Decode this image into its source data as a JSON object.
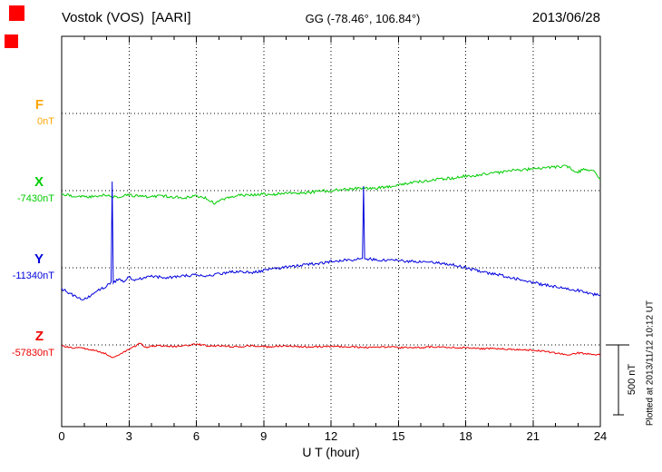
{
  "header": {
    "station": "Vostok (VOS)  [AARI]",
    "coords": "GG (-78.46°, 106.84°)",
    "date": "2013/06/28"
  },
  "decorations": {
    "marker_color": "#ff0000"
  },
  "components": [
    {
      "id": "F",
      "label": "F",
      "baseline_label": "0nT",
      "baseline_nT": 0,
      "color": "#ffa500"
    },
    {
      "id": "X",
      "label": "X",
      "baseline_label": "-7430nT",
      "baseline_nT": -7430,
      "color": "#00cc00"
    },
    {
      "id": "Y",
      "label": "Y",
      "baseline_label": "-11340nT",
      "baseline_nT": -11340,
      "color": "#0000dd"
    },
    {
      "id": "Z",
      "label": "Z",
      "baseline_label": "-57830nT",
      "baseline_nT": -57830,
      "color": "#ee0000"
    }
  ],
  "xaxis": {
    "label": "U T (hour)",
    "min": 0,
    "max": 24,
    "minor_step": 1,
    "ticks": [
      0,
      3,
      6,
      9,
      12,
      15,
      18,
      21,
      24
    ]
  },
  "scalebar": {
    "label": "500 nT",
    "nT": 500
  },
  "footer_note": "Plotted at 2013/11/12 10:12 UT",
  "chart_data": {
    "type": "line",
    "title": "Vostok (VOS) [AARI] magnetogram 2013/06/28",
    "xlabel": "U T (hour)",
    "x_range": [
      0,
      24
    ],
    "unit": "nT",
    "grid": "dotted, vertical every 3 h, horizontal at each component baseline",
    "legend_position": "left margin (component letters with baseline values)",
    "note": "points are [hour UT, offset in nT from the component baseline value]; F has no data plotted",
    "series": [
      {
        "name": "F",
        "baseline_nT": 0,
        "color": "#ffa500",
        "noise_nT": 0,
        "points": []
      },
      {
        "name": "X",
        "baseline_nT": -7430,
        "color": "#00cc00",
        "noise_nT": 10,
        "points": [
          [
            0,
            -26
          ],
          [
            0.5,
            -39
          ],
          [
            1,
            -45
          ],
          [
            1.5,
            -39
          ],
          [
            2,
            -32
          ],
          [
            2.5,
            -45
          ],
          [
            3,
            -32
          ],
          [
            3.5,
            -39
          ],
          [
            4,
            -45
          ],
          [
            4.5,
            -39
          ],
          [
            5,
            -45
          ],
          [
            5.5,
            -52
          ],
          [
            6,
            -39
          ],
          [
            6.5,
            -58
          ],
          [
            6.8,
            -91
          ],
          [
            7,
            -71
          ],
          [
            7.5,
            -45
          ],
          [
            8,
            -32
          ],
          [
            8.5,
            -32
          ],
          [
            9,
            -26
          ],
          [
            9.5,
            -26
          ],
          [
            10,
            -19
          ],
          [
            10.5,
            -19
          ],
          [
            11,
            -13
          ],
          [
            11.5,
            -6
          ],
          [
            12,
            0
          ],
          [
            12.5,
            6
          ],
          [
            13,
            13
          ],
          [
            13.5,
            19
          ],
          [
            14,
            19
          ],
          [
            14.5,
            26
          ],
          [
            15,
            39
          ],
          [
            15.5,
            52
          ],
          [
            16,
            65
          ],
          [
            16.5,
            78
          ],
          [
            17,
            84
          ],
          [
            17.5,
            91
          ],
          [
            18,
            104
          ],
          [
            18.5,
            110
          ],
          [
            19,
            123
          ],
          [
            19.5,
            130
          ],
          [
            20,
            143
          ],
          [
            20.5,
            149
          ],
          [
            21,
            156
          ],
          [
            21.5,
            162
          ],
          [
            22,
            169
          ],
          [
            22.5,
            175
          ],
          [
            23,
            130
          ],
          [
            23.3,
            158
          ],
          [
            23.7,
            140
          ],
          [
            24,
            85
          ]
        ]
      },
      {
        "name": "Y",
        "baseline_nT": -11340,
        "color": "#0000dd",
        "noise_nT": 10,
        "points": [
          [
            0,
            -149
          ],
          [
            0.5,
            -195
          ],
          [
            1,
            -227
          ],
          [
            1.5,
            -175
          ],
          [
            2,
            -130
          ],
          [
            2.2,
            -110
          ],
          [
            2.25,
            617
          ],
          [
            2.3,
            -110
          ],
          [
            2.5,
            -84
          ],
          [
            2.8,
            -100
          ],
          [
            3,
            -65
          ],
          [
            3.2,
            -90
          ],
          [
            3.5,
            -78
          ],
          [
            4,
            -58
          ],
          [
            4.5,
            -71
          ],
          [
            5,
            -65
          ],
          [
            5.5,
            -58
          ],
          [
            6,
            -52
          ],
          [
            6.5,
            -58
          ],
          [
            7,
            -45
          ],
          [
            7.5,
            -32
          ],
          [
            8,
            -26
          ],
          [
            8.5,
            -32
          ],
          [
            9,
            -19
          ],
          [
            9.5,
            -6
          ],
          [
            10,
            6
          ],
          [
            10.5,
            13
          ],
          [
            11,
            26
          ],
          [
            11.5,
            32
          ],
          [
            12,
            45
          ],
          [
            12.5,
            52
          ],
          [
            13,
            58
          ],
          [
            13.4,
            65
          ],
          [
            13.45,
            584
          ],
          [
            13.5,
            65
          ],
          [
            14,
            58
          ],
          [
            14.5,
            52
          ],
          [
            15,
            52
          ],
          [
            15.5,
            45
          ],
          [
            16,
            45
          ],
          [
            16.5,
            39
          ],
          [
            17,
            32
          ],
          [
            17.5,
            19
          ],
          [
            18,
            0
          ],
          [
            18.5,
            -19
          ],
          [
            19,
            -39
          ],
          [
            19.5,
            -52
          ],
          [
            20,
            -71
          ],
          [
            20.5,
            -84
          ],
          [
            21,
            -104
          ],
          [
            21.5,
            -123
          ],
          [
            22,
            -136
          ],
          [
            22.5,
            -149
          ],
          [
            23,
            -162
          ],
          [
            23.5,
            -182
          ],
          [
            24,
            -201
          ]
        ]
      },
      {
        "name": "Z",
        "baseline_nT": -57830,
        "color": "#ee0000",
        "noise_nT": 6,
        "points": [
          [
            0,
            -6
          ],
          [
            0.5,
            -19
          ],
          [
            1,
            -26
          ],
          [
            1.5,
            -39
          ],
          [
            2,
            -65
          ],
          [
            2.3,
            -91
          ],
          [
            2.6,
            -65
          ],
          [
            3,
            -32
          ],
          [
            3.3,
            -6
          ],
          [
            3.5,
            13
          ],
          [
            3.7,
            -19
          ],
          [
            4,
            -6
          ],
          [
            4.5,
            -6
          ],
          [
            5,
            -13
          ],
          [
            5.5,
            -6
          ],
          [
            6,
            6
          ],
          [
            6.5,
            -6
          ],
          [
            7,
            -6
          ],
          [
            7.5,
            -13
          ],
          [
            8,
            -13
          ],
          [
            8.5,
            -6
          ],
          [
            9,
            -13
          ],
          [
            9.5,
            -13
          ],
          [
            10,
            -6
          ],
          [
            10.5,
            -13
          ],
          [
            11,
            -13
          ],
          [
            11.5,
            -13
          ],
          [
            12,
            -13
          ],
          [
            12.5,
            -13
          ],
          [
            13,
            -13
          ],
          [
            13.5,
            -19
          ],
          [
            14,
            -13
          ],
          [
            14.5,
            -13
          ],
          [
            15,
            -19
          ],
          [
            15.5,
            -19
          ],
          [
            16,
            -19
          ],
          [
            16.5,
            -13
          ],
          [
            17,
            -19
          ],
          [
            17.5,
            -19
          ],
          [
            18,
            -19
          ],
          [
            18.5,
            -26
          ],
          [
            19,
            -26
          ],
          [
            19.5,
            -26
          ],
          [
            20,
            -32
          ],
          [
            20.5,
            -32
          ],
          [
            21,
            -39
          ],
          [
            21.5,
            -45
          ],
          [
            22,
            -58
          ],
          [
            22.5,
            -71
          ],
          [
            23,
            -58
          ],
          [
            23.5,
            -65
          ],
          [
            24,
            -71
          ]
        ]
      }
    ]
  }
}
